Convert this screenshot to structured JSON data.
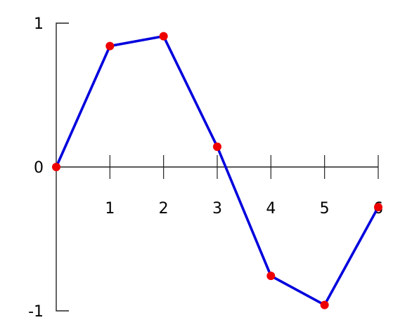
{
  "chart_data": {
    "type": "line",
    "title": "",
    "xlabel": "",
    "ylabel": "",
    "xlim": [
      0,
      6
    ],
    "ylim": [
      -1,
      1
    ],
    "grid": false,
    "x_ticks": [
      1,
      2,
      3,
      4,
      5,
      6
    ],
    "x_tick_labels": [
      "1",
      "2",
      "3",
      "4",
      "5",
      "6"
    ],
    "y_tick_labels": [
      {
        "value": 1,
        "label": "1"
      },
      {
        "value": 0,
        "label": "0"
      },
      {
        "value": -1,
        "label": "-1"
      }
    ],
    "series": [
      {
        "line_color": "#0000dd",
        "marker_color": "#ee0000",
        "x": [
          0,
          1,
          2,
          3,
          4,
          5,
          6
        ],
        "y": [
          0,
          0.841,
          0.909,
          0.141,
          -0.757,
          -0.959,
          -0.279
        ]
      }
    ]
  }
}
